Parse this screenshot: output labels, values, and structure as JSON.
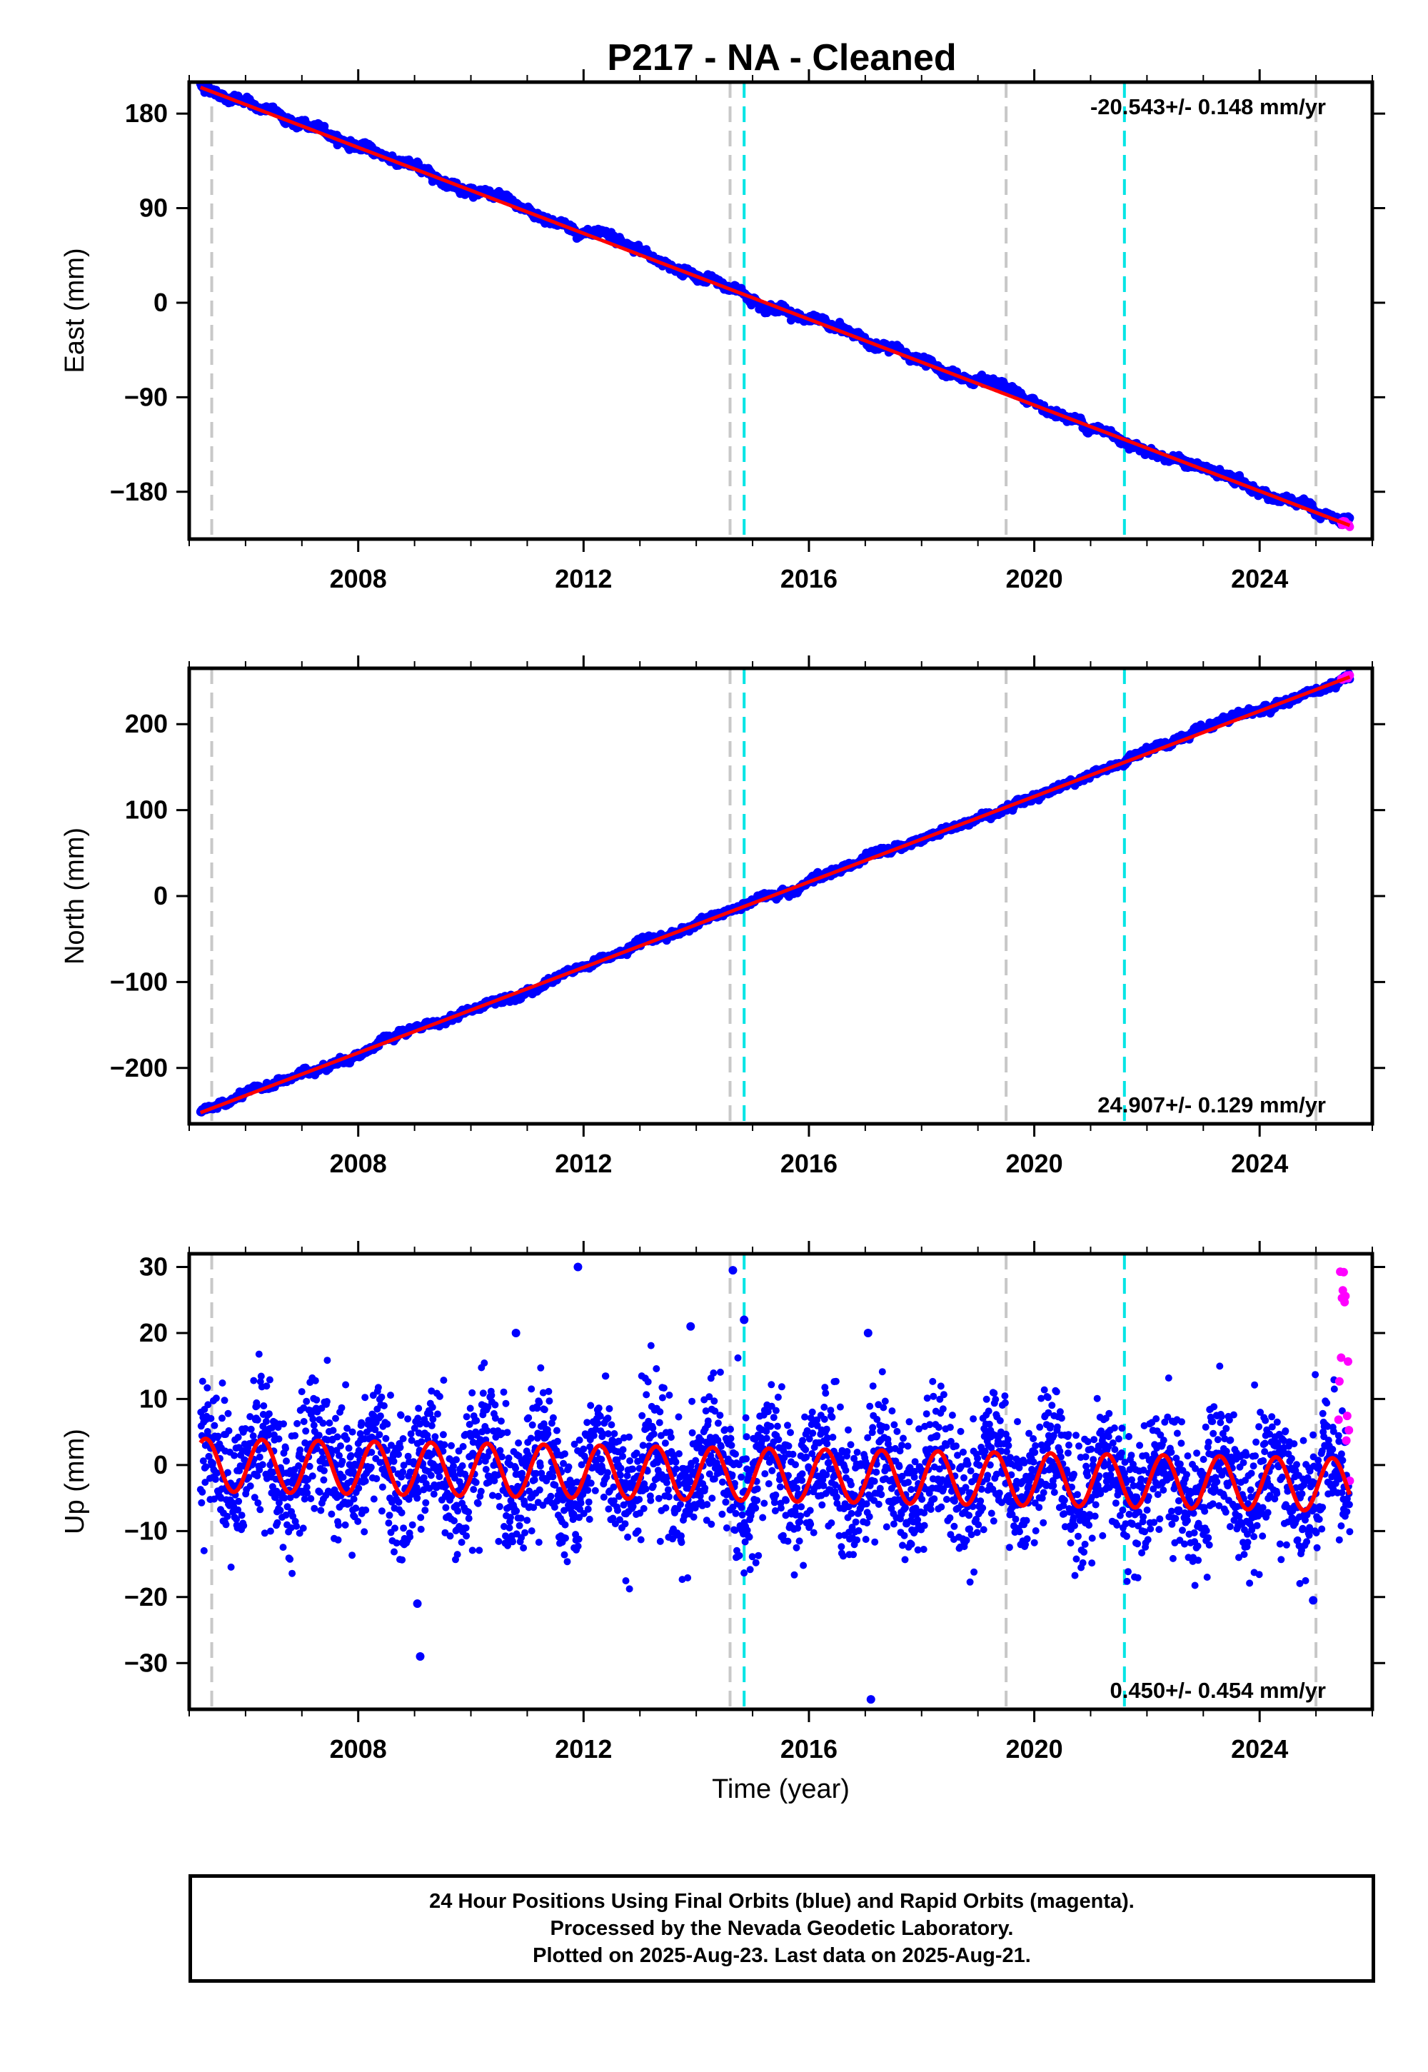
{
  "title": "P217  - NA - Cleaned",
  "colors": {
    "final_orbits": "#0000ff",
    "rapid_orbits": "#ff00ff",
    "model_fit": "#ff0000",
    "equipment_change": "#c8c8c8",
    "earthquake": "#00e5e5"
  },
  "chart_data": [
    {
      "type": "scatter",
      "ylabel": "East (mm)",
      "xlabel": "",
      "xlim": [
        2005.0,
        2026.0
      ],
      "ylim": [
        -225,
        210
      ],
      "x_ticks": [
        2008,
        2012,
        2016,
        2020,
        2024
      ],
      "y_ticks": [
        180,
        90,
        0,
        -90,
        -180
      ],
      "y_tick_labels": [
        "180",
        "90",
        "0",
        "−90",
        "−180"
      ],
      "rate_label": "-20.543+/- 0.148 mm/yr",
      "rate_label_position": "top-right",
      "equipment_change_years": [
        2005.4,
        2014.6,
        2019.5,
        2025.0
      ],
      "earthquake_years": [
        2014.85,
        2021.6
      ],
      "series": [
        {
          "kind": "trend",
          "x": [
            2005.2,
            2025.6
          ],
          "values": [
            207,
            -212
          ],
          "noise_amplitude": 3,
          "point_spread": 1.5,
          "color": "#0000ff"
        },
        {
          "kind": "rapid_tail",
          "x": [
            2025.45,
            2025.6
          ],
          "values": [
            -209,
            -212
          ],
          "color": "#ff00ff"
        },
        {
          "kind": "model",
          "x": [
            2005.2,
            2025.6
          ],
          "values": [
            205,
            -212
          ],
          "color": "#ff0000"
        }
      ]
    },
    {
      "type": "scatter",
      "ylabel": "North (mm)",
      "xlabel": "",
      "xlim": [
        2005.0,
        2026.0
      ],
      "ylim": [
        -265,
        265
      ],
      "x_ticks": [
        2008,
        2012,
        2016,
        2020,
        2024
      ],
      "y_ticks": [
        200,
        100,
        0,
        -100,
        -200
      ],
      "y_tick_labels": [
        "200",
        "100",
        "0",
        "−100",
        "−200"
      ],
      "rate_label": "24.907+/- 0.129 mm/yr",
      "rate_label_position": "bottom-right",
      "equipment_change_years": [
        2005.4,
        2014.6,
        2019.5,
        2025.0
      ],
      "earthquake_years": [
        2014.85,
        2021.6
      ],
      "series": [
        {
          "kind": "trend",
          "x": [
            2005.2,
            2025.6
          ],
          "values": [
            -252,
            256
          ],
          "noise_amplitude": 3,
          "point_spread": 1.5,
          "color": "#0000ff"
        },
        {
          "kind": "rapid_tail",
          "x": [
            2025.45,
            2025.6
          ],
          "values": [
            252,
            256
          ],
          "color": "#ff00ff"
        },
        {
          "kind": "model",
          "x": [
            2005.2,
            2025.6
          ],
          "values": [
            -252,
            255
          ],
          "color": "#ff0000"
        }
      ]
    },
    {
      "type": "scatter",
      "ylabel": "Up (mm)",
      "xlabel": "Time (year)",
      "xlim": [
        2005.0,
        2026.0
      ],
      "ylim": [
        -37,
        32
      ],
      "x_ticks": [
        2008,
        2012,
        2016,
        2020,
        2024
      ],
      "y_ticks": [
        30,
        20,
        10,
        0,
        -10,
        -20,
        -30
      ],
      "y_tick_labels": [
        "30",
        "20",
        "10",
        "0",
        "−10",
        "−20",
        "−30"
      ],
      "rate_label": "0.450+/- 0.454 mm/yr",
      "rate_label_position": "bottom-right",
      "equipment_change_years": [
        2005.4,
        2014.6,
        2019.5,
        2025.0
      ],
      "earthquake_years": [
        2014.85,
        2021.6
      ],
      "series": [
        {
          "kind": "seasonal",
          "x": [
            2005.2,
            2025.6
          ],
          "baseline": [
            0,
            -3
          ],
          "seasonal_amplitude": 4,
          "point_spread": 5,
          "color": "#0000ff"
        },
        {
          "kind": "rapid_tail",
          "x": [
            2025.4,
            2025.6
          ],
          "values": [
            -4,
            30
          ],
          "color": "#ff00ff"
        },
        {
          "kind": "model",
          "x": [
            2005.2,
            2025.6
          ],
          "baseline": [
            0,
            -3
          ],
          "seasonal_amplitude": 4,
          "color": "#ff0000"
        }
      ],
      "outliers": [
        {
          "x": 2009.05,
          "y": -21
        },
        {
          "x": 2009.1,
          "y": -29
        },
        {
          "x": 2011.9,
          "y": 30
        },
        {
          "x": 2014.65,
          "y": 29.5
        },
        {
          "x": 2014.85,
          "y": 22
        },
        {
          "x": 2017.1,
          "y": -35.5
        },
        {
          "x": 2024.95,
          "y": -20.5
        },
        {
          "x": 2010.8,
          "y": 20
        },
        {
          "x": 2017.05,
          "y": 20
        },
        {
          "x": 2013.9,
          "y": 21
        }
      ]
    }
  ],
  "caption": {
    "line1": "24 Hour Positions Using Final Orbits (blue) and Rapid Orbits (magenta).",
    "line2": "Processed by the Nevada Geodetic Laboratory.",
    "line3": "Plotted on 2025-Aug-23. Last data on 2025-Aug-21."
  }
}
